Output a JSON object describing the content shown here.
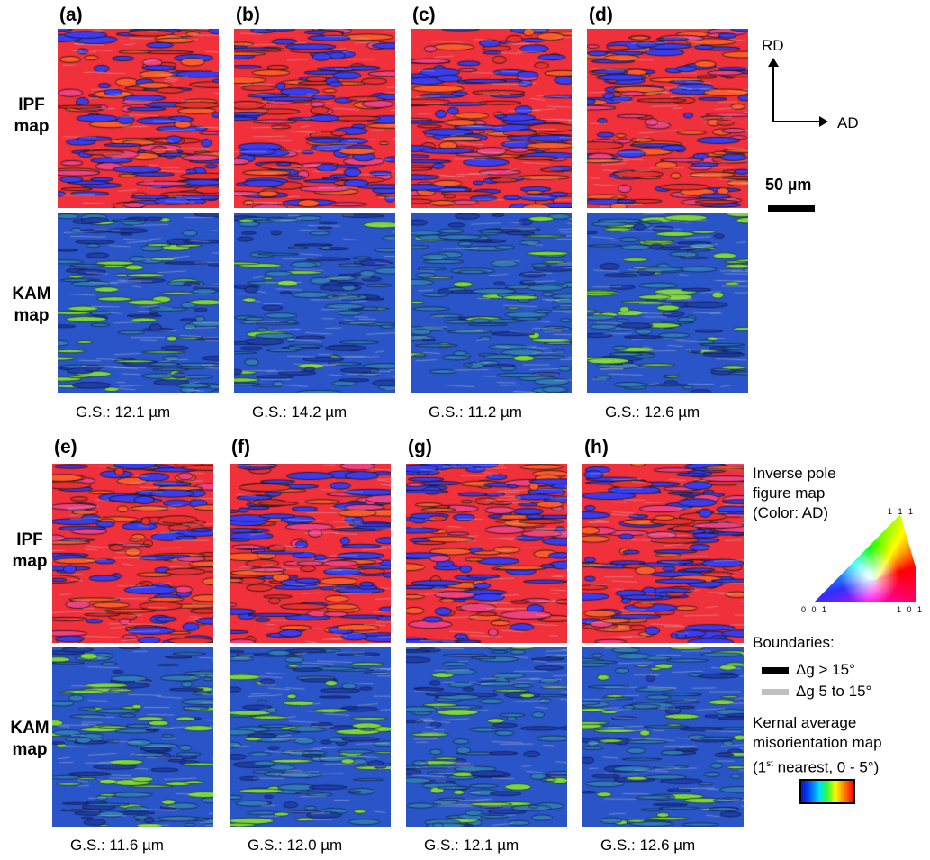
{
  "rows": [
    {
      "panels": [
        {
          "label": "(a)",
          "gs": "G.S.: 12.1 µm"
        },
        {
          "label": "(b)",
          "gs": "G.S.: 14.2 µm"
        },
        {
          "label": "(c)",
          "gs": "G.S.: 11.2 µm"
        },
        {
          "label": "(d)",
          "gs": "G.S.: 12.6 µm"
        }
      ]
    },
    {
      "panels": [
        {
          "label": "(e)",
          "gs": "G.S.: 11.6 µm"
        },
        {
          "label": "(f)",
          "gs": "G.S.: 12.0 µm"
        },
        {
          "label": "(g)",
          "gs": "G.S.: 12.1 µm"
        },
        {
          "label": "(h)",
          "gs": "G.S.: 12.6 µm"
        }
      ]
    }
  ],
  "row_labels": {
    "ipf1": "IPF",
    "ipf2": "map",
    "kam1": "KAM",
    "kam2": "map"
  },
  "axes": {
    "rd": "RD",
    "ad": "AD"
  },
  "scale_bar": "50 µm",
  "legend": {
    "ipf_title1": "Inverse pole",
    "ipf_title2": "figure map",
    "ipf_title3": "(Color: AD)",
    "corner_111": "1 1 1",
    "corner_001": "0 0 1",
    "corner_101": "1 0 1",
    "boundaries_title": "Boundaries:",
    "high_angle": "Δg > 15°",
    "low_angle": "Δg 5 to 15°",
    "kam_title1": "Kernal average",
    "kam_title2": "misorientation map",
    "kam_title3a": "(1",
    "kam_title3sup": "st",
    "kam_title3b": " nearest, 0 - 5°)"
  },
  "colors": {
    "black_boundary": "#000000",
    "gray_boundary": "#c0c0c0"
  }
}
